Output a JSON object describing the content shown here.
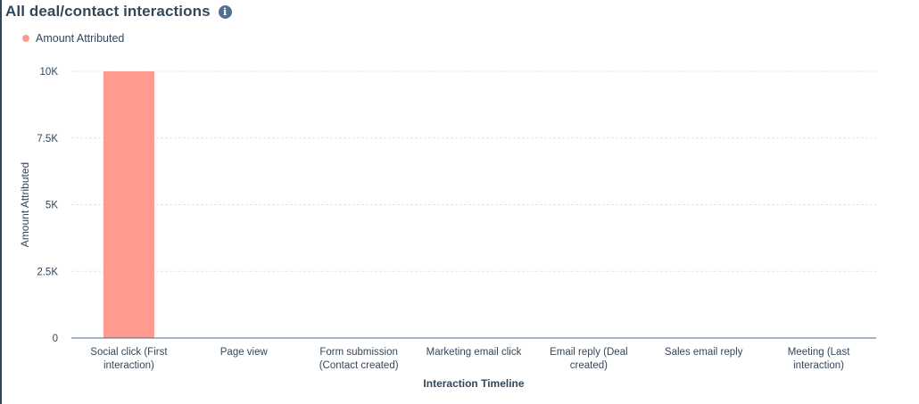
{
  "header": {
    "title": "All deal/contact interactions",
    "info_icon": "info-icon"
  },
  "colors": {
    "bar": "#ff9a8e",
    "axis": "#4a6a8c",
    "grid": "#dfe3eb",
    "text": "#33475b"
  },
  "chart_data": {
    "type": "bar",
    "title": "All deal/contact interactions",
    "xlabel": "Interaction Timeline",
    "ylabel": "Amount Attributed",
    "categories": [
      [
        "Social click (First",
        "interaction)"
      ],
      [
        "Page view"
      ],
      [
        "Form submission",
        "(Contact created)"
      ],
      [
        "Marketing email click"
      ],
      [
        "Email reply (Deal",
        "created)"
      ],
      [
        "Sales email reply"
      ],
      [
        "Meeting (Last",
        "interaction)"
      ]
    ],
    "series": [
      {
        "name": "Amount Attributed",
        "values": [
          10000,
          0,
          0,
          0,
          0,
          0,
          0
        ]
      }
    ],
    "ylim": [
      0,
      10000
    ],
    "yticks": [
      0,
      2500,
      5000,
      7500,
      10000
    ],
    "ytick_labels": [
      "0",
      "2.5K",
      "5K",
      "7.5K",
      "10K"
    ],
    "grid": true,
    "legend_position": "top-left"
  }
}
